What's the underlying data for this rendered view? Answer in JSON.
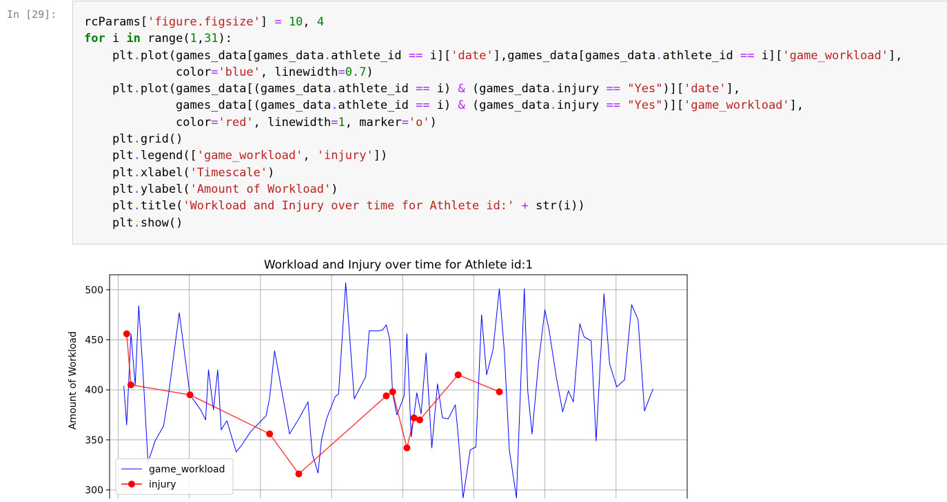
{
  "prompt": "In [29]:",
  "code_lines": [
    [
      {
        "t": "rcParams[",
        "c": ""
      },
      {
        "t": "'figure.figsize'",
        "c": "s"
      },
      {
        "t": "] ",
        "c": ""
      },
      {
        "t": "=",
        "c": "p"
      },
      {
        "t": " ",
        "c": ""
      },
      {
        "t": "10",
        "c": "n"
      },
      {
        "t": ", ",
        "c": ""
      },
      {
        "t": "4",
        "c": "n"
      }
    ],
    [
      {
        "t": "for",
        "c": "k"
      },
      {
        "t": " i ",
        "c": ""
      },
      {
        "t": "in",
        "c": "k"
      },
      {
        "t": " range(",
        "c": ""
      },
      {
        "t": "1",
        "c": "n"
      },
      {
        "t": ",",
        "c": ""
      },
      {
        "t": "31",
        "c": "n"
      },
      {
        "t": "):",
        "c": ""
      }
    ],
    [
      {
        "t": "    plt",
        "c": ""
      },
      {
        "t": ".",
        "c": "p"
      },
      {
        "t": "plot(games_data[games_data",
        "c": ""
      },
      {
        "t": ".",
        "c": "p"
      },
      {
        "t": "athlete_id ",
        "c": ""
      },
      {
        "t": "==",
        "c": "p"
      },
      {
        "t": " i][",
        "c": ""
      },
      {
        "t": "'date'",
        "c": "s"
      },
      {
        "t": "],games_data[games_data",
        "c": ""
      },
      {
        "t": ".",
        "c": "p"
      },
      {
        "t": "athlete_id ",
        "c": ""
      },
      {
        "t": "==",
        "c": "p"
      },
      {
        "t": " i][",
        "c": ""
      },
      {
        "t": "'game_workload'",
        "c": "s"
      },
      {
        "t": "],",
        "c": ""
      }
    ],
    [
      {
        "t": "             color",
        "c": ""
      },
      {
        "t": "=",
        "c": "p"
      },
      {
        "t": "'blue'",
        "c": "s"
      },
      {
        "t": ", linewidth",
        "c": ""
      },
      {
        "t": "=",
        "c": "p"
      },
      {
        "t": "0.7",
        "c": "n"
      },
      {
        "t": ")",
        "c": ""
      }
    ],
    [
      {
        "t": "    plt",
        "c": ""
      },
      {
        "t": ".",
        "c": "p"
      },
      {
        "t": "plot(games_data[(games_data",
        "c": ""
      },
      {
        "t": ".",
        "c": "p"
      },
      {
        "t": "athlete_id ",
        "c": ""
      },
      {
        "t": "==",
        "c": "p"
      },
      {
        "t": " i) ",
        "c": ""
      },
      {
        "t": "&",
        "c": "p"
      },
      {
        "t": " (games_data",
        "c": ""
      },
      {
        "t": ".",
        "c": "p"
      },
      {
        "t": "injury ",
        "c": ""
      },
      {
        "t": "==",
        "c": "p"
      },
      {
        "t": " ",
        "c": ""
      },
      {
        "t": "\"Yes\"",
        "c": "s"
      },
      {
        "t": ")][",
        "c": ""
      },
      {
        "t": "'date'",
        "c": "s"
      },
      {
        "t": "],",
        "c": ""
      }
    ],
    [
      {
        "t": "             games_data[(games_data",
        "c": ""
      },
      {
        "t": ".",
        "c": "p"
      },
      {
        "t": "athlete_id ",
        "c": ""
      },
      {
        "t": "==",
        "c": "p"
      },
      {
        "t": " i) ",
        "c": ""
      },
      {
        "t": "&",
        "c": "p"
      },
      {
        "t": " (games_data",
        "c": ""
      },
      {
        "t": ".",
        "c": "p"
      },
      {
        "t": "injury ",
        "c": ""
      },
      {
        "t": "==",
        "c": "p"
      },
      {
        "t": " ",
        "c": ""
      },
      {
        "t": "\"Yes\"",
        "c": "s"
      },
      {
        "t": ")][",
        "c": ""
      },
      {
        "t": "'game_workload'",
        "c": "s"
      },
      {
        "t": "],",
        "c": ""
      }
    ],
    [
      {
        "t": "             color",
        "c": ""
      },
      {
        "t": "=",
        "c": "p"
      },
      {
        "t": "'red'",
        "c": "s"
      },
      {
        "t": ", linewidth",
        "c": ""
      },
      {
        "t": "=",
        "c": "p"
      },
      {
        "t": "1",
        "c": "n"
      },
      {
        "t": ", marker",
        "c": ""
      },
      {
        "t": "=",
        "c": "p"
      },
      {
        "t": "'o'",
        "c": "s"
      },
      {
        "t": ")",
        "c": ""
      }
    ],
    [
      {
        "t": "    plt",
        "c": ""
      },
      {
        "t": ".",
        "c": "p"
      },
      {
        "t": "grid()",
        "c": ""
      }
    ],
    [
      {
        "t": "    plt",
        "c": ""
      },
      {
        "t": ".",
        "c": "p"
      },
      {
        "t": "legend([",
        "c": ""
      },
      {
        "t": "'game_workload'",
        "c": "s"
      },
      {
        "t": ", ",
        "c": ""
      },
      {
        "t": "'injury'",
        "c": "s"
      },
      {
        "t": "])",
        "c": ""
      }
    ],
    [
      {
        "t": "    plt",
        "c": ""
      },
      {
        "t": ".",
        "c": "p"
      },
      {
        "t": "xlabel(",
        "c": ""
      },
      {
        "t": "'Timescale'",
        "c": "s"
      },
      {
        "t": ")",
        "c": ""
      }
    ],
    [
      {
        "t": "    plt",
        "c": ""
      },
      {
        "t": ".",
        "c": "p"
      },
      {
        "t": "ylabel(",
        "c": ""
      },
      {
        "t": "'Amount of Workload'",
        "c": "s"
      },
      {
        "t": ")",
        "c": ""
      }
    ],
    [
      {
        "t": "    plt",
        "c": ""
      },
      {
        "t": ".",
        "c": "p"
      },
      {
        "t": "title(",
        "c": ""
      },
      {
        "t": "'Workload and Injury over time for Athlete id:'",
        "c": "s"
      },
      {
        "t": " ",
        "c": ""
      },
      {
        "t": "+",
        "c": "p"
      },
      {
        "t": " str(i))",
        "c": ""
      }
    ],
    [
      {
        "t": "    plt",
        "c": ""
      },
      {
        "t": ".",
        "c": "p"
      },
      {
        "t": "show()",
        "c": ""
      }
    ]
  ],
  "chart_data": {
    "type": "line",
    "title": "Workload and Injury over time for Athlete id:1",
    "xlabel": "",
    "ylabel": "Amount of Workload",
    "yticks": [
      300,
      350,
      400,
      450,
      500
    ],
    "ylim": [
      290,
      515
    ],
    "xlim": [
      -1.2,
      80
    ],
    "grid": true,
    "legend_position": "lower-left",
    "colors": {
      "game_workload": "#0000ff",
      "injury": "#ff0000"
    },
    "series": [
      {
        "name": "game_workload",
        "x": [
          0.8,
          1.2,
          1.8,
          2.4,
          2.9,
          3.5,
          4.2,
          4.7,
          5.2,
          6.4,
          7.1,
          8.6,
          10.1,
          11.6,
          12.3,
          12.7,
          13.4,
          14.0,
          14.5,
          14.9,
          15.3,
          15.8,
          16.6,
          17.4,
          18.6,
          20.8,
          21.3,
          22.0,
          24.1,
          25.4,
          26.7,
          27.3,
          28.1,
          28.6,
          29.3,
          30.5,
          31.0,
          32.0,
          33.2,
          34.8,
          35.3,
          36.1,
          36.7,
          37.2,
          37.7,
          38.2,
          38.6,
          39.2,
          40.2,
          40.6,
          41.2,
          42.0,
          42.6,
          43.3,
          44.1,
          44.9,
          45.6,
          46.4,
          47.4,
          47.8,
          48.5,
          49.5,
          50.3,
          51.1,
          51.8,
          52.7,
          53.6,
          54.3,
          55.0,
          56.0,
          57.1,
          57.6,
          58.2,
          59.1,
          60.0,
          60.6,
          61.6,
          62.5,
          63.3,
          64.0,
          64.9,
          65.5,
          66.5,
          67.2,
          68.3,
          69.1,
          70.1,
          71.2,
          72.2,
          73.1,
          74.0,
          75.2
        ],
        "y": [
          404,
          365,
          456,
          405,
          484,
          417,
          328,
          338,
          349,
          364,
          396,
          477,
          395,
          380,
          370,
          420,
          380,
          420,
          360,
          365,
          369,
          357,
          338,
          345,
          358,
          374,
          392,
          439,
          356,
          371,
          388,
          336,
          317,
          350,
          371,
          393,
          396,
          507,
          391,
          413,
          459,
          459,
          459,
          460,
          465,
          450,
          396,
          375,
          394,
          456,
          353,
          397,
          376,
          437,
          342,
          406,
          372,
          371,
          385,
          355,
          292,
          340,
          343,
          475,
          415,
          440,
          501,
          438,
          340,
          292,
          501,
          398,
          356,
          427,
          480,
          459,
          413,
          378,
          399,
          388,
          466,
          453,
          449,
          349,
          496,
          426,
          403,
          410,
          485,
          470,
          379,
          401
        ]
      },
      {
        "name": "injury",
        "x": [
          1.2,
          1.8,
          10.1,
          21.3,
          25.4,
          37.7,
          38.6,
          40.6,
          41.6,
          42.4,
          47.8,
          53.6
        ],
        "y": [
          456,
          405,
          395,
          356,
          316,
          394,
          398,
          342,
          372,
          370,
          415,
          398
        ]
      }
    ]
  }
}
